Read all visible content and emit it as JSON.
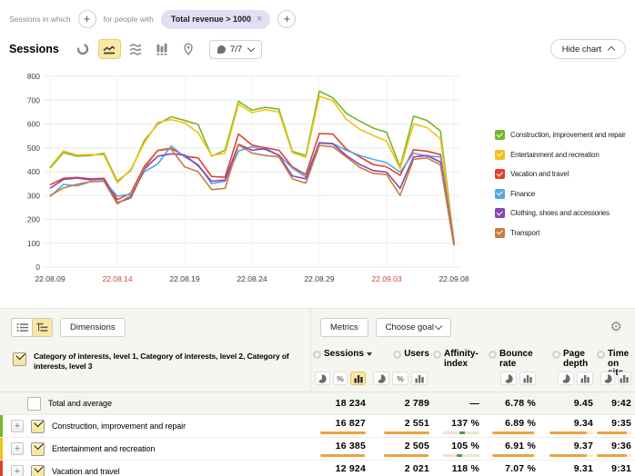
{
  "filter_bar": {
    "prefix_label": "Sessions in which",
    "middle_label": "for people with",
    "chip": {
      "label": "Total revenue > 1000",
      "remove": "×"
    }
  },
  "chart_toolbar": {
    "title": "Sessions",
    "segments_label": "7/7",
    "hide_chart_label": "Hide chart"
  },
  "icons": {
    "plus": "+",
    "close": "×",
    "gear": "⚙",
    "percent": "%"
  },
  "colors": {
    "accent_selected": "#fbe9a3",
    "bar_fill": "#f0a13c",
    "bar_track": "#fbe8cd",
    "affinity_marker": "#4e9e3c",
    "chip_bg": "#e3def3",
    "weekend_tick": "#ca4a3d",
    "next_row_stripe": "#56a7e8"
  },
  "chart_data": {
    "type": "line",
    "title": "Sessions",
    "ylabel": "",
    "xlabel": "",
    "grid": true,
    "legend_position": "right",
    "ylim": [
      0,
      800
    ],
    "y_ticks": [
      0,
      100,
      200,
      300,
      400,
      500,
      600,
      700,
      800
    ],
    "x": [
      "22.08.09",
      "22.08.10",
      "22.08.11",
      "22.08.12",
      "22.08.13",
      "22.08.14",
      "22.08.15",
      "22.08.16",
      "22.08.17",
      "22.08.18",
      "22.08.19",
      "22.08.20",
      "22.08.21",
      "22.08.22",
      "22.08.23",
      "22.08.24",
      "22.08.25",
      "22.08.26",
      "22.08.27",
      "22.08.28",
      "22.08.29",
      "22.08.30",
      "22.08.31",
      "22.09.01",
      "22.09.02",
      "22.09.03",
      "22.09.04",
      "22.09.05",
      "22.09.06",
      "22.09.07",
      "22.09.08"
    ],
    "x_ticks": [
      {
        "index": 0,
        "label": "22.08.09",
        "red": false
      },
      {
        "index": 5,
        "label": "22.08.14",
        "red": true
      },
      {
        "index": 10,
        "label": "22.08.19",
        "red": false
      },
      {
        "index": 15,
        "label": "22.08.24",
        "red": false
      },
      {
        "index": 20,
        "label": "22.08.29",
        "red": false
      },
      {
        "index": 25,
        "label": "22.09.03",
        "red": true
      },
      {
        "index": 30,
        "label": "22.09.08",
        "red": false
      }
    ],
    "series": [
      {
        "name": "Construction, improvement and repair",
        "color": "#77b82a",
        "values": [
          415,
          480,
          465,
          468,
          477,
          360,
          405,
          530,
          600,
          630,
          615,
          598,
          465,
          490,
          695,
          658,
          670,
          662,
          485,
          468,
          738,
          710,
          645,
          612,
          583,
          565,
          420,
          633,
          615,
          570,
          105
        ]
      },
      {
        "name": "Entertainment and recreation",
        "color": "#f2c216",
        "values": [
          420,
          487,
          470,
          472,
          470,
          353,
          410,
          520,
          607,
          618,
          605,
          563,
          468,
          477,
          683,
          648,
          660,
          650,
          480,
          460,
          716,
          698,
          620,
          578,
          552,
          528,
          413,
          600,
          585,
          538,
          100
        ]
      },
      {
        "name": "Vacation and travel",
        "color": "#e2402f",
        "values": [
          345,
          372,
          376,
          370,
          372,
          283,
          310,
          422,
          490,
          498,
          465,
          458,
          380,
          377,
          558,
          512,
          500,
          490,
          420,
          388,
          560,
          558,
          495,
          462,
          430,
          420,
          385,
          492,
          486,
          472,
          100
        ]
      },
      {
        "name": "Finance",
        "color": "#56a7e8",
        "values": [
          295,
          347,
          340,
          358,
          362,
          298,
          305,
          400,
          432,
          508,
          462,
          430,
          350,
          360,
          487,
          505,
          492,
          470,
          415,
          378,
          522,
          518,
          490,
          468,
          452,
          438,
          398,
          478,
          465,
          462,
          95
        ]
      },
      {
        "name": "Clothing, shoes and accessories",
        "color": "#8e44ad",
        "values": [
          330,
          368,
          373,
          366,
          370,
          270,
          290,
          410,
          465,
          475,
          470,
          425,
          360,
          365,
          515,
          490,
          497,
          468,
          382,
          370,
          520,
          517,
          468,
          430,
          405,
          398,
          330,
          462,
          468,
          440,
          95
        ]
      },
      {
        "name": "Transport",
        "color": "#c97b3d",
        "values": [
          300,
          332,
          347,
          358,
          360,
          265,
          300,
          415,
          488,
          495,
          420,
          400,
          325,
          330,
          513,
          478,
          468,
          462,
          370,
          352,
          510,
          505,
          462,
          418,
          393,
          388,
          300,
          452,
          458,
          428,
          90
        ]
      }
    ]
  },
  "table": {
    "controls": {
      "dimensions_label": "Dimensions",
      "metrics_label": "Metrics",
      "choose_goal_label": "Choose goal",
      "selected_view": "tree"
    },
    "dimension_header": "Category of interests, level 1, Category of interests, level 2, Category of interests, level 3",
    "columns": [
      {
        "key": "sessions",
        "label": "Sessions",
        "sorted": "desc",
        "mini_buttons": [
          "pie",
          "percent",
          "bars"
        ],
        "selected_mini": "bars"
      },
      {
        "key": "users",
        "label": "Users",
        "mini_buttons": [
          "pie",
          "percent",
          "bars"
        ]
      },
      {
        "key": "affinity",
        "label": "Affinity-index",
        "mini_buttons": []
      },
      {
        "key": "bounce",
        "label": "Bounce rate",
        "mini_buttons": [
          "pie",
          "bars"
        ]
      },
      {
        "key": "depth",
        "label": "Page depth",
        "mini_buttons": [
          "pie",
          "bars"
        ]
      },
      {
        "key": "time",
        "label": "Time on site",
        "mini_buttons": [
          "pie",
          "bars"
        ]
      }
    ],
    "rows": [
      {
        "label": "Total and average",
        "total": true,
        "checked": false,
        "stripe": null,
        "cells": [
          {
            "value": "18 234"
          },
          {
            "value": "2 789"
          },
          {
            "value": "—"
          },
          {
            "value": "6.78 %"
          },
          {
            "value": "9.45"
          },
          {
            "value": "9:42"
          }
        ]
      },
      {
        "label": "Construction, improvement and repair",
        "total": false,
        "checked": true,
        "stripe": "#77b82a",
        "cells": [
          {
            "value": "16 827",
            "bar": 100
          },
          {
            "value": "2 551",
            "bar": 100
          },
          {
            "value": "137 %",
            "marker": 52
          },
          {
            "value": "6.89 %",
            "bar": 95
          },
          {
            "value": "9.34",
            "bar": 85
          },
          {
            "value": "9:35",
            "bar": 88
          }
        ]
      },
      {
        "label": "Entertainment and recreation",
        "total": false,
        "checked": true,
        "stripe": "#f2c216",
        "cells": [
          {
            "value": "16 385",
            "bar": 97
          },
          {
            "value": "2 505",
            "bar": 98
          },
          {
            "value": "105 %",
            "marker": 44
          },
          {
            "value": "6.91 %",
            "bar": 96
          },
          {
            "value": "9.37",
            "bar": 86
          },
          {
            "value": "9:36",
            "bar": 88
          }
        ]
      },
      {
        "label": "Vacation and travel",
        "total": false,
        "checked": true,
        "stripe": "#e2402f",
        "cells": [
          {
            "value": "12 924",
            "bar": 77
          },
          {
            "value": "2 021",
            "bar": 79
          },
          {
            "value": "118 %",
            "marker": 47
          },
          {
            "value": "7.07 %",
            "bar": 98
          },
          {
            "value": "9.31",
            "bar": 84
          },
          {
            "value": "9:31",
            "bar": 87
          }
        ]
      }
    ]
  }
}
